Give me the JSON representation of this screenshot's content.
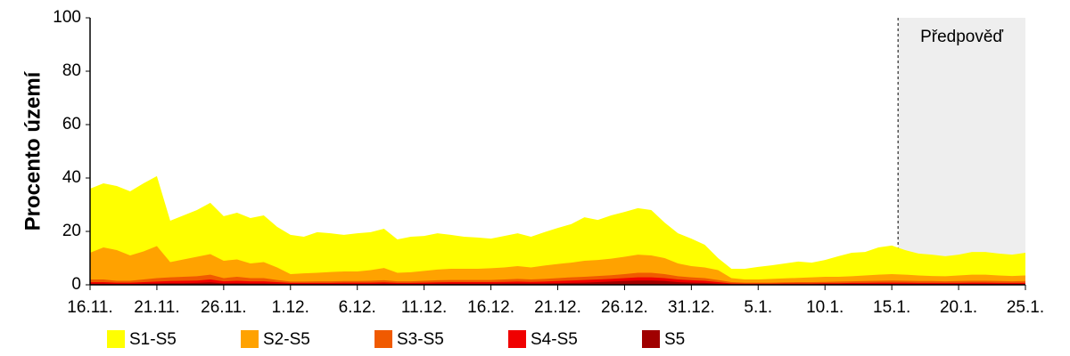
{
  "chart_data": {
    "type": "area",
    "y_label": "Procento území",
    "forecast_label": "Předpověď",
    "forecast_from": "15.1.",
    "ylim": [
      0,
      100
    ],
    "yticks": [
      0,
      20,
      40,
      60,
      80,
      100
    ],
    "categories": [
      "16.11.",
      null,
      null,
      null,
      null,
      "21.11.",
      null,
      null,
      null,
      null,
      "26.11.",
      null,
      null,
      null,
      null,
      "1.12.",
      null,
      null,
      null,
      null,
      "6.12.",
      null,
      null,
      null,
      null,
      "11.12.",
      null,
      null,
      null,
      null,
      "16.12.",
      null,
      null,
      null,
      null,
      "21.12.",
      null,
      null,
      null,
      null,
      "26.12.",
      null,
      null,
      null,
      null,
      "31.12.",
      null,
      null,
      null,
      null,
      "5.1.",
      null,
      null,
      null,
      null,
      "10.1.",
      null,
      null,
      null,
      null,
      "15.1.",
      null,
      null,
      null,
      null,
      "20.1.",
      null,
      null,
      null,
      null,
      "25.1."
    ],
    "series": [
      {
        "name": "S1-S5",
        "color": "#ffff00",
        "values": [
          36,
          38,
          37,
          35,
          38,
          40.7,
          24,
          26,
          28,
          30.7,
          25.7,
          27,
          25,
          26,
          21.7,
          18.7,
          18,
          19.7,
          19.3,
          18.7,
          19.3,
          19.7,
          21,
          17,
          18,
          18.3,
          19.3,
          18.7,
          18,
          17.7,
          17.3,
          18.3,
          19.3,
          18,
          19.7,
          21.3,
          22.7,
          25.3,
          24.3,
          26,
          27.3,
          28.7,
          28,
          23.3,
          19.3,
          17.3,
          15,
          10,
          6,
          6,
          6.7,
          7.3,
          8,
          8.7,
          8.3,
          9.3,
          10.7,
          12,
          12.3,
          14,
          14.7,
          13,
          11.7,
          11.3,
          10.7,
          11.3,
          12.3,
          12.3,
          11.7,
          11.3,
          12
        ]
      },
      {
        "name": "S2-S5",
        "color": "#ffa200",
        "values": [
          12,
          14,
          13,
          11,
          12.5,
          14.5,
          8.5,
          9.5,
          10.5,
          11.5,
          9,
          9.5,
          8,
          8.5,
          6.5,
          4,
          4.3,
          4.5,
          4.8,
          5,
          5,
          5.5,
          6.3,
          4.5,
          4.7,
          5.2,
          5.7,
          6,
          6,
          6,
          6.2,
          6.5,
          7,
          6.5,
          7.2,
          7.8,
          8.3,
          9,
          9.3,
          9.8,
          10.5,
          11.3,
          11,
          10,
          8,
          7,
          6.5,
          5.5,
          2.5,
          2,
          2,
          2.2,
          2.4,
          2.6,
          2.8,
          3,
          3,
          3.2,
          3.5,
          3.8,
          4,
          3.8,
          3.5,
          3.3,
          3.2,
          3.5,
          3.8,
          3.8,
          3.5,
          3.3,
          3.5
        ]
      },
      {
        "name": "S3-S5",
        "color": "#f05a00",
        "values": [
          2,
          2,
          1.5,
          1.5,
          2,
          2.5,
          2.8,
          3,
          3.2,
          3.8,
          2.5,
          3,
          2.5,
          2.5,
          1.8,
          1.2,
          1.2,
          1.3,
          1.3,
          1.4,
          1.4,
          1.5,
          1.7,
          1.3,
          1.3,
          1.5,
          1.7,
          1.8,
          1.8,
          1.8,
          1.8,
          2,
          2.2,
          2,
          2.2,
          2.5,
          2.8,
          3,
          3.3,
          3.6,
          4,
          4.5,
          4.5,
          4,
          3.2,
          2.8,
          2.5,
          1.8,
          1,
          0.8,
          0.8,
          0.8,
          0.9,
          1,
          1,
          1.1,
          1.2,
          1.3,
          1.4,
          1.5,
          1.6,
          1.5,
          1.4,
          1.4,
          1.3,
          1.4,
          1.5,
          1.5,
          1.4,
          1.3,
          1.4
        ]
      },
      {
        "name": "S4-S5",
        "color": "#f00000",
        "values": [
          1,
          1,
          0.8,
          0.8,
          1,
          1.2,
          1.4,
          1.5,
          1.6,
          2,
          1.3,
          1.5,
          1.3,
          1.3,
          1,
          0.7,
          0.7,
          0.7,
          0.7,
          0.8,
          0.8,
          0.8,
          0.9,
          0.7,
          0.7,
          0.8,
          0.9,
          1,
          1,
          1,
          1,
          1.1,
          1.2,
          1.1,
          1.2,
          1.4,
          1.6,
          1.8,
          2,
          2.2,
          2.5,
          2.8,
          2.8,
          2.5,
          2,
          1.7,
          1.5,
          1,
          0.5,
          0.4,
          0.4,
          0.4,
          0.5,
          0.5,
          0.5,
          0.6,
          0.6,
          0.7,
          0.7,
          0.8,
          0.8,
          0.8,
          0.7,
          0.7,
          0.7,
          0.7,
          0.8,
          0.8,
          0.7,
          0.7,
          0.7
        ]
      },
      {
        "name": "S5",
        "color": "#a00000",
        "values": [
          0.4,
          0.4,
          0.3,
          0.3,
          0.4,
          0.5,
          0.6,
          0.6,
          0.7,
          0.9,
          0.5,
          0.6,
          0.5,
          0.5,
          0.4,
          0.3,
          0.3,
          0.3,
          0.3,
          0.3,
          0.3,
          0.3,
          0.4,
          0.3,
          0.3,
          0.3,
          0.4,
          0.4,
          0.4,
          0.4,
          0.4,
          0.5,
          0.5,
          0.5,
          0.5,
          0.6,
          0.7,
          0.8,
          1,
          1.2,
          1.4,
          1.6,
          1.6,
          1.4,
          1,
          0.8,
          0.7,
          0.4,
          0.2,
          0.2,
          0.2,
          0.2,
          0.2,
          0.2,
          0.2,
          0.3,
          0.3,
          0.3,
          0.3,
          0.3,
          0.3,
          0.3,
          0.3,
          0.3,
          0.3,
          0.3,
          0.3,
          0.3,
          0.3,
          0.3,
          0.3
        ]
      }
    ]
  }
}
